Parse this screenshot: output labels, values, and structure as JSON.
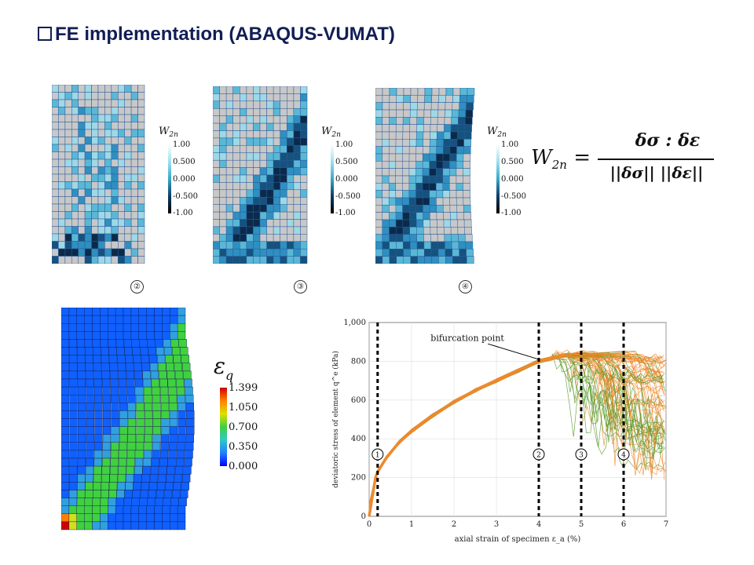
{
  "title": "FE implementation (ABAQUS-VUMAT)",
  "w2n_panels": [
    {
      "label": "②",
      "legend_title": "W",
      "legend_sub": "2n",
      "ticks": [
        "1.00",
        "0.500",
        "0.000",
        "-0.500",
        "-1.00"
      ]
    },
    {
      "label": "③",
      "legend_title": "W",
      "legend_sub": "2n",
      "ticks": [
        "1.00",
        "0.500",
        "0.000",
        "-0.500",
        "-1.00"
      ]
    },
    {
      "label": "④",
      "legend_title": "W",
      "legend_sub": "2n",
      "ticks": [
        "1.00",
        "0.500",
        "0.000",
        "-0.500",
        "-1.00"
      ]
    }
  ],
  "formula": {
    "lhs": "W",
    "lhs_sub": "2n",
    "equals": "=",
    "numerator": "δσ : δε",
    "denominator": "||δσ|| ||δε||"
  },
  "eq_panel": {
    "legend_title": "ε",
    "legend_sub": "q",
    "ticks": [
      "1.399",
      "1.050",
      "0.700",
      "0.350",
      "0.000"
    ]
  },
  "chart_data": {
    "type": "line",
    "xlabel": "axial strain of specimen ε_a   (%)",
    "ylabel": "deviatoric stress of element q^e   (kPa)",
    "xlim": [
      0,
      7
    ],
    "ylim": [
      0,
      1000
    ],
    "x_ticks": [
      "0",
      "1",
      "2",
      "3",
      "4",
      "5",
      "6",
      "7"
    ],
    "y_ticks": [
      "0",
      "200",
      "400",
      "600",
      "800",
      "1,000"
    ],
    "annotation": "bifurcation point",
    "annotation_point": [
      4.0,
      810
    ],
    "stage_lines": [
      {
        "label": "1",
        "x": 0.2
      },
      {
        "label": "2",
        "x": 4.0
      },
      {
        "label": "3",
        "x": 5.0
      },
      {
        "label": "4",
        "x": 6.0
      }
    ],
    "colors": {
      "orange": "#f0882a",
      "green": "#5a9a2a"
    },
    "mean_curve": {
      "x": [
        0,
        0.15,
        0.2,
        0.4,
        0.7,
        1.0,
        1.5,
        2.0,
        2.5,
        3.0,
        3.5,
        4.0,
        4.3,
        4.6
      ],
      "y": [
        0,
        200,
        230,
        300,
        380,
        440,
        520,
        590,
        650,
        700,
        750,
        800,
        815,
        830
      ]
    }
  }
}
